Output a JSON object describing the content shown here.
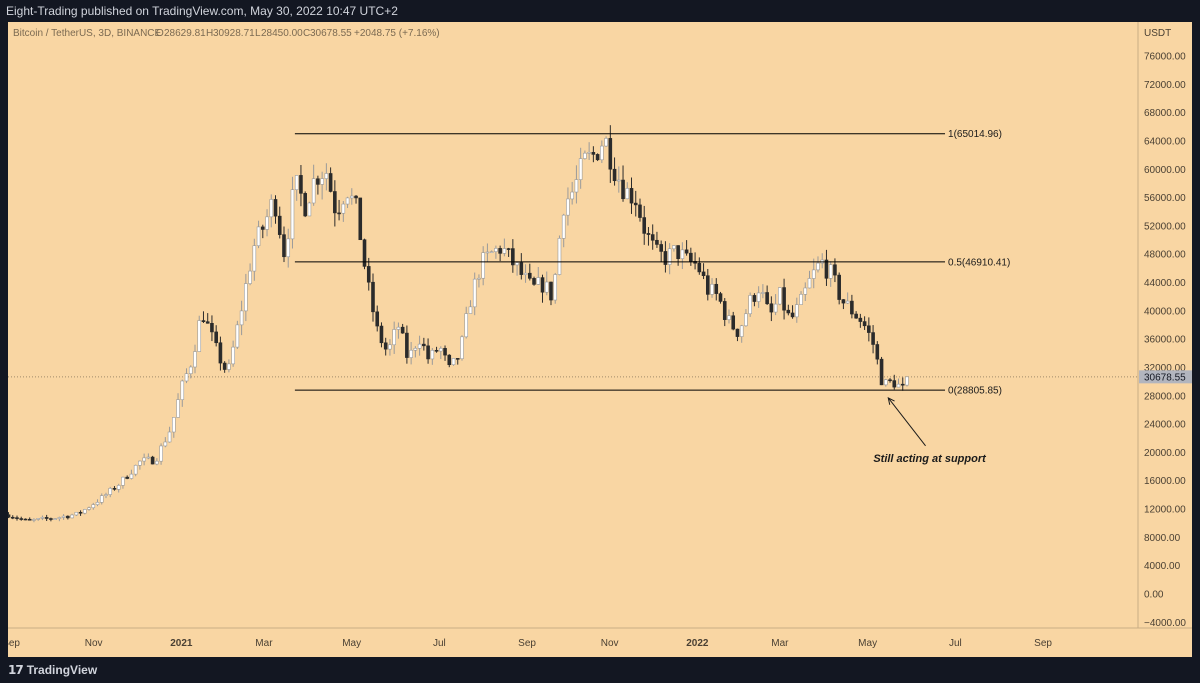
{
  "header": {
    "publisher": "Eight-Trading published on TradingView.com, May 30, 2022 10:47 UTC+2"
  },
  "footer": {
    "brand": "TradingView",
    "logo_icon": "tradingview-logo-icon"
  },
  "colors": {
    "chart_bg": "#f9d6a3",
    "candle_up": "#ffffff",
    "candle_down": "#2b2b2b",
    "fib_line": "#000000",
    "price_badge": "#b2b5be"
  },
  "chart_data": {
    "type": "candlestick",
    "legend": {
      "symbol": "Bitcoin / TetherUS, 3D, BINANCE",
      "open_label": "O",
      "open": "28629.81",
      "high_label": "H",
      "high": "30928.71",
      "low_label": "L",
      "low": "28450.00",
      "close_label": "C",
      "close": "30678.55",
      "change": "+2048.75 (+7.16%)"
    },
    "price_axis_unit": "USDT",
    "y_ticks": [
      "76000.00",
      "72000.00",
      "68000.00",
      "64000.00",
      "60000.00",
      "56000.00",
      "52000.00",
      "48000.00",
      "44000.00",
      "40000.00",
      "36000.00",
      "32000.00",
      "28000.00",
      "24000.00",
      "20000.00",
      "16000.00",
      "12000.00",
      "8000.00",
      "4000.00",
      "0.00",
      "−4000.00"
    ],
    "ylim": [
      -4800,
      80800
    ],
    "x_ticks": [
      {
        "label": "Sep",
        "x": 2020.67,
        "bold": false
      },
      {
        "label": "Nov",
        "x": 2020.83,
        "bold": false
      },
      {
        "label": "2021",
        "x": 2021.0,
        "bold": true
      },
      {
        "label": "Mar",
        "x": 2021.16,
        "bold": false
      },
      {
        "label": "May",
        "x": 2021.33,
        "bold": false
      },
      {
        "label": "Jul",
        "x": 2021.5,
        "bold": false
      },
      {
        "label": "Sep",
        "x": 2021.67,
        "bold": false
      },
      {
        "label": "Nov",
        "x": 2021.83,
        "bold": false
      },
      {
        "label": "2022",
        "x": 2022.0,
        "bold": true
      },
      {
        "label": "Mar",
        "x": 2022.16,
        "bold": false
      },
      {
        "label": "May",
        "x": 2022.33,
        "bold": false
      },
      {
        "label": "Jul",
        "x": 2022.5,
        "bold": false
      },
      {
        "label": "Sep",
        "x": 2022.67,
        "bold": false
      }
    ],
    "xlim": [
      2020.664,
      2022.854
    ],
    "current_price": "30678.55",
    "current_price_value": 30678.55,
    "fib_levels": [
      {
        "label": "1(65014.96)",
        "value": 65014.96
      },
      {
        "label": "0.5(46910.41)",
        "value": 46910.41
      },
      {
        "label": "0(28805.85)",
        "value": 28805.85
      }
    ],
    "fib_x_range": [
      2021.22,
      2022.48
    ],
    "annotation": {
      "text": "Still acting at support",
      "x": 2022.45,
      "price": 21500,
      "arrow_to_x": 2022.37,
      "arrow_to_price": 27700
    },
    "price_path": [
      [
        2020.665,
        11200
      ],
      [
        2020.7,
        10300
      ],
      [
        2020.75,
        10700
      ],
      [
        2020.8,
        11300
      ],
      [
        2020.85,
        13800
      ],
      [
        2020.88,
        15600
      ],
      [
        2020.92,
        18700
      ],
      [
        2020.95,
        19000
      ],
      [
        2020.98,
        23500
      ],
      [
        2021.0,
        29000
      ],
      [
        2021.02,
        33000
      ],
      [
        2021.04,
        40000
      ],
      [
        2021.07,
        34000
      ],
      [
        2021.09,
        31000
      ],
      [
        2021.11,
        38000
      ],
      [
        2021.14,
        49000
      ],
      [
        2021.16,
        52000
      ],
      [
        2021.18,
        56000
      ],
      [
        2021.2,
        48000
      ],
      [
        2021.22,
        58000
      ],
      [
        2021.24,
        55000
      ],
      [
        2021.26,
        59000
      ],
      [
        2021.28,
        60000
      ],
      [
        2021.3,
        54000
      ],
      [
        2021.32,
        57500
      ],
      [
        2021.34,
        54000
      ],
      [
        2021.36,
        44000
      ],
      [
        2021.38,
        37000
      ],
      [
        2021.4,
        34000
      ],
      [
        2021.42,
        38000
      ],
      [
        2021.44,
        33000
      ],
      [
        2021.46,
        36500
      ],
      [
        2021.48,
        33000
      ],
      [
        2021.5,
        35000
      ],
      [
        2021.52,
        31500
      ],
      [
        2021.54,
        34000
      ],
      [
        2021.56,
        41500
      ],
      [
        2021.58,
        46500
      ],
      [
        2021.6,
        48000
      ],
      [
        2021.62,
        49000
      ],
      [
        2021.64,
        47000
      ],
      [
        2021.66,
        45000
      ],
      [
        2021.68,
        43000
      ],
      [
        2021.7,
        43800
      ],
      [
        2021.72,
        42000
      ],
      [
        2021.74,
        55000
      ],
      [
        2021.76,
        57000
      ],
      [
        2021.78,
        61000
      ],
      [
        2021.8,
        62000
      ],
      [
        2021.82,
        64500
      ],
      [
        2021.84,
        60000
      ],
      [
        2021.86,
        57000
      ],
      [
        2021.88,
        56000
      ],
      [
        2021.9,
        51000
      ],
      [
        2021.92,
        48000
      ],
      [
        2021.94,
        47500
      ],
      [
        2021.96,
        48500
      ],
      [
        2021.98,
        47000
      ],
      [
        2022.0,
        46500
      ],
      [
        2022.02,
        43000
      ],
      [
        2022.04,
        42000
      ],
      [
        2022.06,
        38500
      ],
      [
        2022.08,
        37000
      ],
      [
        2022.1,
        41000
      ],
      [
        2022.12,
        43500
      ],
      [
        2022.14,
        39000
      ],
      [
        2022.16,
        42000
      ],
      [
        2022.18,
        38500
      ],
      [
        2022.2,
        41000
      ],
      [
        2022.22,
        44500
      ],
      [
        2022.24,
        47000
      ],
      [
        2022.26,
        45000
      ],
      [
        2022.28,
        41500
      ],
      [
        2022.3,
        40000
      ],
      [
        2022.32,
        38500
      ],
      [
        2022.34,
        35500
      ],
      [
        2022.36,
        29500
      ],
      [
        2022.38,
        30000
      ],
      [
        2022.4,
        28800
      ],
      [
        2022.41,
        30678.55
      ]
    ]
  }
}
